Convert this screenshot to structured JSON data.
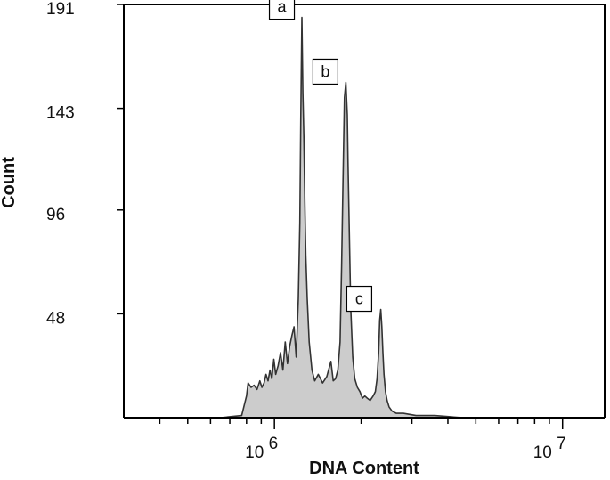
{
  "chart_data": {
    "type": "area",
    "xlabel": "DNA Content",
    "ylabel": "Count",
    "x_scale": "log",
    "xlim": [
      300000,
      14000000
    ],
    "ylim": [
      0,
      191
    ],
    "y_ticks": [
      {
        "value": 48,
        "label": "48"
      },
      {
        "value": 96,
        "label": "96"
      },
      {
        "value": 143,
        "label": "143"
      },
      {
        "value": 191,
        "label": "191"
      }
    ],
    "x_tick_labels": [
      {
        "value": 1000000,
        "base": "10",
        "exp": "6"
      },
      {
        "value": 10000000,
        "base": "10",
        "exp": "7"
      }
    ],
    "x_minor_ticks": [
      400000,
      500000,
      600000,
      700000,
      800000,
      900000,
      2000000,
      3000000,
      4000000,
      5000000,
      6000000,
      7000000,
      8000000,
      9000000
    ],
    "grid": false,
    "fill_color": "#cccccc",
    "line_color": "#333333",
    "series": [
      {
        "x": [
          300000,
          650000,
          770000,
          800000,
          810000,
          830000,
          850000,
          870000,
          890000,
          905000,
          920000,
          935000,
          950000,
          965000,
          980000,
          995000,
          1010000,
          1030000,
          1050000,
          1070000,
          1090000,
          1110000,
          1130000,
          1150000,
          1170000,
          1190000,
          1210000,
          1225000,
          1235000,
          1245000,
          1255000,
          1265000,
          1275000,
          1285000,
          1300000,
          1320000,
          1350000,
          1380000,
          1420000,
          1470000,
          1520000,
          1570000,
          1600000,
          1630000,
          1660000,
          1690000,
          1710000,
          1730000,
          1750000,
          1770000,
          1790000,
          1800000,
          1820000,
          1840000,
          1870000,
          1900000,
          1940000,
          1980000,
          2020000,
          2060000,
          2100000,
          2150000,
          2200000,
          2240000,
          2270000,
          2300000,
          2320000,
          2340000,
          2360000,
          2380000,
          2400000,
          2430000,
          2460000,
          2500000,
          2560000,
          2650000,
          2800000,
          3100000,
          3600000,
          4500000,
          6000000,
          14000000
        ],
        "y": [
          0,
          0,
          1,
          10,
          16,
          14,
          15,
          13,
          17,
          14,
          16,
          20,
          17,
          22,
          18,
          27,
          20,
          24,
          30,
          22,
          35,
          25,
          33,
          38,
          42,
          28,
          55,
          90,
          140,
          185,
          150,
          130,
          100,
          75,
          55,
          35,
          22,
          17,
          20,
          16,
          19,
          26,
          17,
          18,
          22,
          35,
          70,
          110,
          148,
          155,
          140,
          118,
          85,
          50,
          28,
          18,
          14,
          12,
          9,
          10,
          9,
          8,
          10,
          12,
          18,
          30,
          45,
          50,
          42,
          30,
          20,
          12,
          8,
          5,
          3,
          2,
          2,
          1,
          1,
          0,
          0,
          0
        ]
      }
    ],
    "peaks": [
      {
        "label": "a",
        "x": 1250000,
        "y": 185
      },
      {
        "label": "b",
        "x": 1770000,
        "y": 155
      },
      {
        "label": "c",
        "x": 2320000,
        "y": 50
      }
    ]
  }
}
